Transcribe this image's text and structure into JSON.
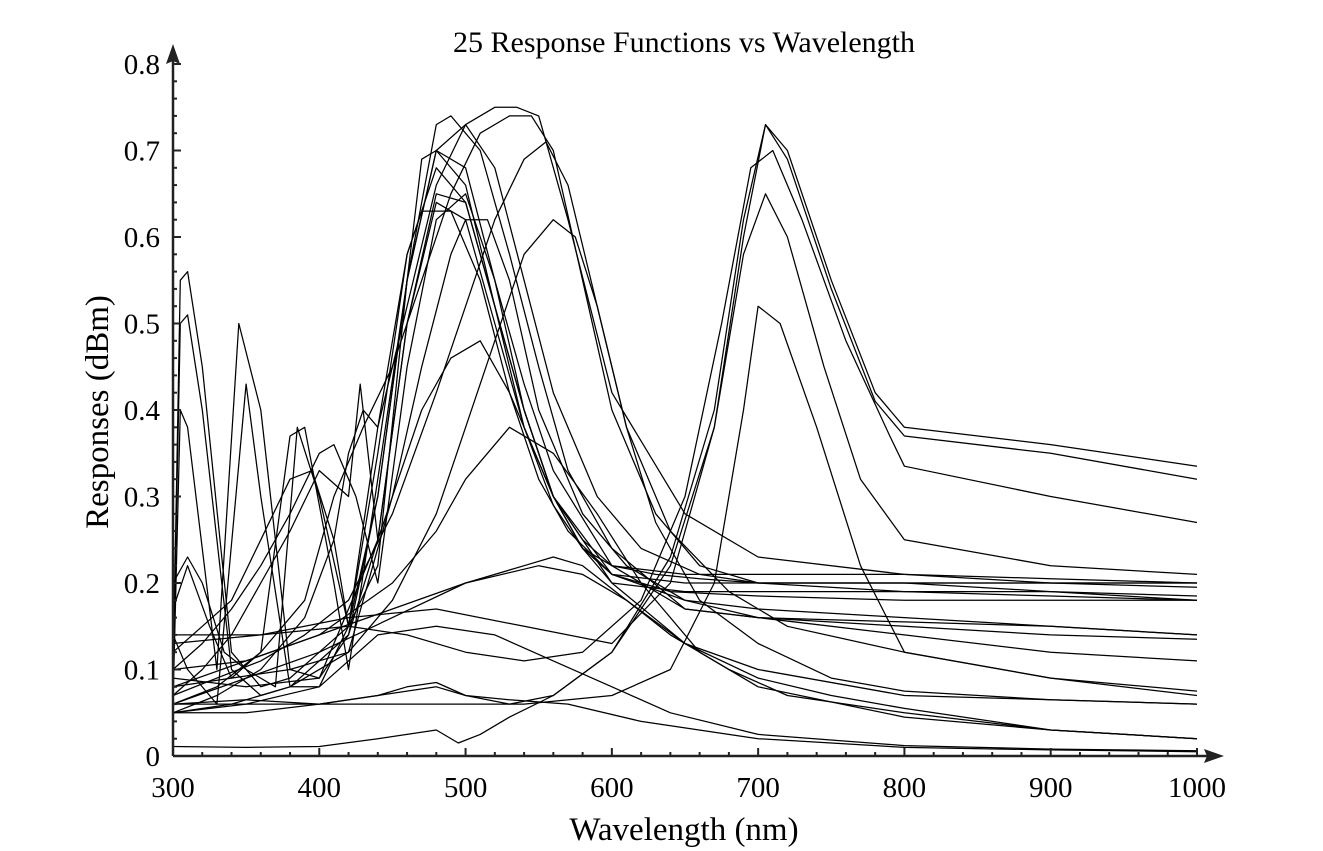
{
  "chart_data": {
    "type": "line",
    "title": "25 Response Functions vs Wavelength",
    "xlabel": "Wavelength (nm)",
    "ylabel": "Responses (dBm)",
    "xlim": [
      300,
      1000
    ],
    "ylim": [
      0,
      0.8
    ],
    "x_ticks": [
      "300",
      "400",
      "500",
      "600",
      "700",
      "800",
      "900",
      "1000"
    ],
    "y_ticks": [
      "0",
      "0.1",
      "0.2",
      "0.3",
      "0.4",
      "0.5",
      "0.6",
      "0.7",
      "0.8"
    ],
    "x_tick_values": [
      300,
      400,
      500,
      600,
      700,
      800,
      900,
      1000
    ],
    "y_tick_values": [
      0,
      0.1,
      0.2,
      0.3,
      0.4,
      0.5,
      0.6,
      0.7,
      0.8
    ],
    "grid": false,
    "line_color": "#000000",
    "series": [
      {
        "x": [
          300,
          305,
          310,
          320,
          340,
          360,
          380,
          400,
          420,
          440,
          460,
          470,
          480,
          500,
          520,
          540,
          560,
          580,
          600,
          630,
          660,
          700,
          750,
          800,
          900,
          1000
        ],
        "y": [
          0.09,
          0.55,
          0.56,
          0.45,
          0.12,
          0.08,
          0.09,
          0.12,
          0.15,
          0.22,
          0.55,
          0.69,
          0.7,
          0.66,
          0.52,
          0.38,
          0.29,
          0.24,
          0.22,
          0.21,
          0.205,
          0.2,
          0.2,
          0.2,
          0.2,
          0.2
        ]
      },
      {
        "x": [
          300,
          305,
          310,
          320,
          340,
          360,
          380,
          400,
          420,
          440,
          460,
          480,
          500,
          520,
          540,
          560,
          580,
          600,
          650,
          700,
          800,
          900,
          1000
        ],
        "y": [
          0.08,
          0.5,
          0.51,
          0.4,
          0.1,
          0.07,
          0.08,
          0.11,
          0.14,
          0.3,
          0.55,
          0.7,
          0.68,
          0.55,
          0.4,
          0.3,
          0.25,
          0.22,
          0.21,
          0.21,
          0.21,
          0.205,
          0.2
        ]
      },
      {
        "x": [
          300,
          305,
          310,
          330,
          345,
          360,
          380,
          400,
          420,
          440,
          460,
          480,
          500,
          520,
          540,
          560,
          580,
          600,
          650,
          700,
          800,
          900,
          1000
        ],
        "y": [
          0.06,
          0.4,
          0.38,
          0.1,
          0.5,
          0.4,
          0.1,
          0.09,
          0.14,
          0.25,
          0.5,
          0.65,
          0.64,
          0.52,
          0.4,
          0.3,
          0.24,
          0.2,
          0.19,
          0.19,
          0.19,
          0.19,
          0.185
        ]
      },
      {
        "x": [
          300,
          310,
          330,
          350,
          360,
          380,
          400,
          420,
          440,
          460,
          470,
          490,
          510,
          530,
          550,
          570,
          600,
          650,
          700,
          800,
          900,
          1000
        ],
        "y": [
          0.14,
          0.1,
          0.06,
          0.43,
          0.3,
          0.08,
          0.08,
          0.15,
          0.35,
          0.58,
          0.63,
          0.63,
          0.55,
          0.42,
          0.32,
          0.26,
          0.21,
          0.2,
          0.2,
          0.2,
          0.19,
          0.18
        ]
      },
      {
        "x": [
          300,
          310,
          320,
          335,
          350,
          370,
          385,
          400,
          420,
          440,
          460,
          480,
          490,
          510,
          530,
          550,
          570,
          600,
          650,
          700,
          800,
          900,
          1000
        ],
        "y": [
          0.2,
          0.23,
          0.2,
          0.12,
          0.1,
          0.08,
          0.38,
          0.3,
          0.15,
          0.3,
          0.55,
          0.73,
          0.74,
          0.7,
          0.58,
          0.45,
          0.33,
          0.24,
          0.17,
          0.16,
          0.155,
          0.15,
          0.14
        ]
      },
      {
        "x": [
          300,
          310,
          325,
          340,
          360,
          380,
          390,
          410,
          420,
          440,
          460,
          480,
          500,
          520,
          540,
          560,
          590,
          620,
          660,
          700,
          800,
          900,
          1000
        ],
        "y": [
          0.17,
          0.22,
          0.15,
          0.09,
          0.12,
          0.37,
          0.38,
          0.2,
          0.1,
          0.32,
          0.55,
          0.7,
          0.73,
          0.68,
          0.55,
          0.42,
          0.3,
          0.24,
          0.21,
          0.2,
          0.2,
          0.2,
          0.2
        ]
      },
      {
        "x": [
          300,
          320,
          340,
          360,
          380,
          395,
          410,
          420,
          440,
          460,
          480,
          500,
          520,
          540,
          560,
          580,
          600,
          640,
          700,
          800,
          900,
          1000
        ],
        "y": [
          0.12,
          0.15,
          0.18,
          0.25,
          0.32,
          0.33,
          0.25,
          0.15,
          0.38,
          0.58,
          0.68,
          0.64,
          0.52,
          0.4,
          0.3,
          0.24,
          0.21,
          0.19,
          0.185,
          0.18,
          0.18,
          0.18
        ]
      },
      {
        "x": [
          300,
          320,
          340,
          360,
          380,
          400,
          410,
          425,
          440,
          460,
          480,
          500,
          520,
          540,
          560,
          600,
          650,
          700,
          800,
          900,
          1000
        ],
        "y": [
          0.1,
          0.13,
          0.17,
          0.22,
          0.28,
          0.35,
          0.36,
          0.3,
          0.2,
          0.45,
          0.62,
          0.65,
          0.55,
          0.43,
          0.33,
          0.22,
          0.17,
          0.16,
          0.15,
          0.14,
          0.135
        ]
      },
      {
        "x": [
          300,
          320,
          340,
          360,
          380,
          400,
          420,
          428,
          440,
          460,
          480,
          500,
          520,
          540,
          560,
          600,
          650,
          700,
          800,
          900,
          1000
        ],
        "y": [
          0.07,
          0.1,
          0.14,
          0.2,
          0.26,
          0.33,
          0.3,
          0.43,
          0.25,
          0.5,
          0.64,
          0.62,
          0.5,
          0.38,
          0.3,
          0.21,
          0.18,
          0.17,
          0.16,
          0.15,
          0.14
        ]
      },
      {
        "x": [
          300,
          330,
          360,
          390,
          410,
          420,
          430,
          440,
          460,
          480,
          500,
          520,
          535,
          550,
          570,
          600,
          650,
          700,
          800,
          900,
          1000
        ],
        "y": [
          0.05,
          0.07,
          0.1,
          0.16,
          0.25,
          0.35,
          0.4,
          0.38,
          0.52,
          0.66,
          0.73,
          0.75,
          0.75,
          0.74,
          0.62,
          0.42,
          0.28,
          0.23,
          0.21,
          0.2,
          0.195
        ]
      },
      {
        "x": [
          300,
          330,
          360,
          390,
          410,
          430,
          450,
          470,
          490,
          510,
          530,
          545,
          560,
          580,
          600,
          630,
          660,
          700,
          800,
          900,
          1000
        ],
        "y": [
          0.06,
          0.08,
          0.12,
          0.18,
          0.3,
          0.38,
          0.45,
          0.55,
          0.65,
          0.72,
          0.74,
          0.74,
          0.7,
          0.55,
          0.4,
          0.28,
          0.22,
          0.2,
          0.19,
          0.185,
          0.18
        ]
      },
      {
        "x": [
          300,
          330,
          360,
          390,
          420,
          450,
          480,
          500,
          520,
          540,
          555,
          570,
          590,
          610,
          640,
          680,
          720,
          800,
          900,
          1000
        ],
        "y": [
          0.07,
          0.09,
          0.11,
          0.14,
          0.18,
          0.28,
          0.42,
          0.52,
          0.62,
          0.69,
          0.71,
          0.66,
          0.52,
          0.38,
          0.26,
          0.19,
          0.15,
          0.12,
          0.09,
          0.075
        ]
      },
      {
        "x": [
          300,
          340,
          380,
          420,
          450,
          480,
          500,
          520,
          540,
          560,
          575,
          590,
          610,
          630,
          660,
          700,
          750,
          800,
          900,
          1000
        ],
        "y": [
          0.08,
          0.09,
          0.1,
          0.12,
          0.18,
          0.28,
          0.38,
          0.48,
          0.58,
          0.62,
          0.6,
          0.52,
          0.38,
          0.27,
          0.18,
          0.13,
          0.09,
          0.075,
          0.065,
          0.06
        ]
      },
      {
        "x": [
          300,
          340,
          380,
          420,
          450,
          470,
          490,
          500,
          515,
          530,
          550,
          580,
          610,
          650,
          700,
          800,
          900,
          1000
        ],
        "y": [
          0.05,
          0.06,
          0.08,
          0.12,
          0.3,
          0.45,
          0.58,
          0.62,
          0.62,
          0.55,
          0.4,
          0.28,
          0.22,
          0.18,
          0.16,
          0.14,
          0.12,
          0.11
        ]
      },
      {
        "x": [
          300,
          350,
          400,
          440,
          470,
          490,
          510,
          530,
          560,
          600,
          650,
          700,
          800,
          900,
          1000
        ],
        "y": [
          0.09,
          0.08,
          0.09,
          0.25,
          0.4,
          0.46,
          0.48,
          0.42,
          0.3,
          0.2,
          0.13,
          0.1,
          0.07,
          0.065,
          0.06
        ]
      },
      {
        "x": [
          300,
          350,
          400,
          450,
          480,
          500,
          530,
          560,
          590,
          620,
          660,
          700,
          800,
          900,
          1000
        ],
        "y": [
          0.1,
          0.11,
          0.14,
          0.2,
          0.26,
          0.32,
          0.38,
          0.35,
          0.28,
          0.2,
          0.12,
          0.08,
          0.045,
          0.03,
          0.02
        ]
      },
      {
        "x": [
          300,
          350,
          400,
          450,
          500,
          540,
          560,
          580,
          610,
          650,
          700,
          750,
          800,
          900,
          1000
        ],
        "y": [
          0.06,
          0.09,
          0.12,
          0.16,
          0.2,
          0.22,
          0.23,
          0.22,
          0.18,
          0.13,
          0.09,
          0.07,
          0.055,
          0.03,
          0.02
        ]
      },
      {
        "x": [
          300,
          350,
          400,
          450,
          500,
          550,
          580,
          610,
          640,
          680,
          720,
          800,
          900,
          1000
        ],
        "y": [
          0.08,
          0.11,
          0.14,
          0.17,
          0.2,
          0.22,
          0.21,
          0.18,
          0.14,
          0.1,
          0.07,
          0.05,
          0.03,
          0.02
        ]
      },
      {
        "x": [
          300,
          350,
          400,
          440,
          480,
          520,
          560,
          600,
          640,
          700,
          800,
          900,
          1000
        ],
        "y": [
          0.05,
          0.06,
          0.08,
          0.14,
          0.15,
          0.14,
          0.11,
          0.08,
          0.05,
          0.025,
          0.012,
          0.008,
          0.006
        ]
      },
      {
        "x": [
          300,
          350,
          400,
          440,
          460,
          480,
          500,
          530,
          570,
          620,
          700,
          800,
          900,
          1000
        ],
        "y": [
          0.06,
          0.065,
          0.06,
          0.07,
          0.08,
          0.085,
          0.07,
          0.065,
          0.06,
          0.04,
          0.02,
          0.01,
          0.007,
          0.005
        ]
      },
      {
        "x": [
          300,
          350,
          400,
          440,
          480,
          495,
          510,
          530,
          560,
          600,
          640,
          670,
          690,
          705,
          720,
          750,
          780,
          800,
          900,
          1000
        ],
        "y": [
          0.011,
          0.01,
          0.011,
          0.02,
          0.03,
          0.015,
          0.025,
          0.045,
          0.07,
          0.12,
          0.22,
          0.38,
          0.6,
          0.73,
          0.7,
          0.55,
          0.42,
          0.38,
          0.36,
          0.335
        ]
      },
      {
        "x": [
          300,
          350,
          400,
          440,
          480,
          500,
          530,
          560,
          600,
          640,
          670,
          690,
          705,
          720,
          750,
          780,
          800,
          900,
          1000
        ],
        "y": [
          0.05,
          0.05,
          0.06,
          0.07,
          0.08,
          0.07,
          0.06,
          0.07,
          0.12,
          0.23,
          0.4,
          0.62,
          0.73,
          0.69,
          0.54,
          0.41,
          0.37,
          0.35,
          0.32
        ]
      },
      {
        "x": [
          300,
          360,
          420,
          460,
          500,
          540,
          580,
          620,
          650,
          675,
          695,
          710,
          730,
          760,
          790,
          800,
          900,
          1000
        ],
        "y": [
          0.14,
          0.14,
          0.15,
          0.14,
          0.12,
          0.11,
          0.12,
          0.18,
          0.3,
          0.5,
          0.68,
          0.7,
          0.62,
          0.48,
          0.37,
          0.335,
          0.3,
          0.27
        ]
      },
      {
        "x": [
          300,
          360,
          420,
          480,
          540,
          600,
          640,
          670,
          690,
          705,
          720,
          745,
          770,
          800,
          900,
          1000
        ],
        "y": [
          0.13,
          0.14,
          0.16,
          0.17,
          0.15,
          0.13,
          0.2,
          0.38,
          0.58,
          0.65,
          0.6,
          0.45,
          0.32,
          0.25,
          0.22,
          0.21
        ]
      },
      {
        "x": [
          300,
          380,
          460,
          540,
          600,
          640,
          670,
          690,
          700,
          715,
          740,
          770,
          800,
          900,
          1000
        ],
        "y": [
          0.06,
          0.06,
          0.06,
          0.06,
          0.07,
          0.1,
          0.2,
          0.4,
          0.52,
          0.5,
          0.38,
          0.22,
          0.12,
          0.09,
          0.07
        ]
      }
    ]
  }
}
